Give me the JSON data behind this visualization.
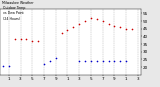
{
  "background_color": "#e8e8e8",
  "plot_bg_color": "#ffffff",
  "grid_color": "#aaaaaa",
  "hours": [
    0,
    1,
    2,
    3,
    4,
    5,
    6,
    7,
    8,
    9,
    10,
    11,
    12,
    13,
    14,
    15,
    16,
    17,
    18,
    19,
    20,
    21,
    22,
    23
  ],
  "temp_values": [
    null,
    null,
    38,
    38,
    38,
    37,
    37,
    null,
    null,
    null,
    42,
    44,
    46,
    48,
    50,
    52,
    51,
    50,
    48,
    47,
    46,
    45,
    45,
    null
  ],
  "dew_values": [
    21,
    21,
    null,
    null,
    null,
    null,
    null,
    22,
    24,
    26,
    null,
    null,
    null,
    24,
    24,
    24,
    24,
    24,
    24,
    24,
    24,
    24,
    null,
    null
  ],
  "temp_color": "#cc0000",
  "dew_color": "#0000cc",
  "legend_temp_color": "#ff0000",
  "legend_dew_color": "#0000ff",
  "ylim": [
    15,
    58
  ],
  "yticks": [
    20,
    25,
    30,
    35,
    40,
    45,
    50,
    55
  ],
  "ytick_labels": [
    "20",
    "25",
    "30",
    "35",
    "40",
    "45",
    "50",
    "55"
  ],
  "xtick_positions": [
    1,
    3,
    5,
    7,
    9,
    11,
    13,
    15,
    17,
    19,
    21,
    23
  ],
  "xtick_labels": [
    "1",
    "3",
    "5",
    "7",
    "9",
    "1",
    "3",
    "5",
    "7",
    "9",
    "1",
    "3"
  ],
  "grid_positions": [
    1,
    3,
    5,
    7,
    9,
    11,
    13,
    15,
    17,
    19,
    21,
    23
  ],
  "tick_fontsize": 3.0,
  "marker_size": 1.2,
  "title_text": "Milwaukee Weather  Outdoor Temp  vs Dew Point  (24 Hours)",
  "title_fontsize": 2.8
}
